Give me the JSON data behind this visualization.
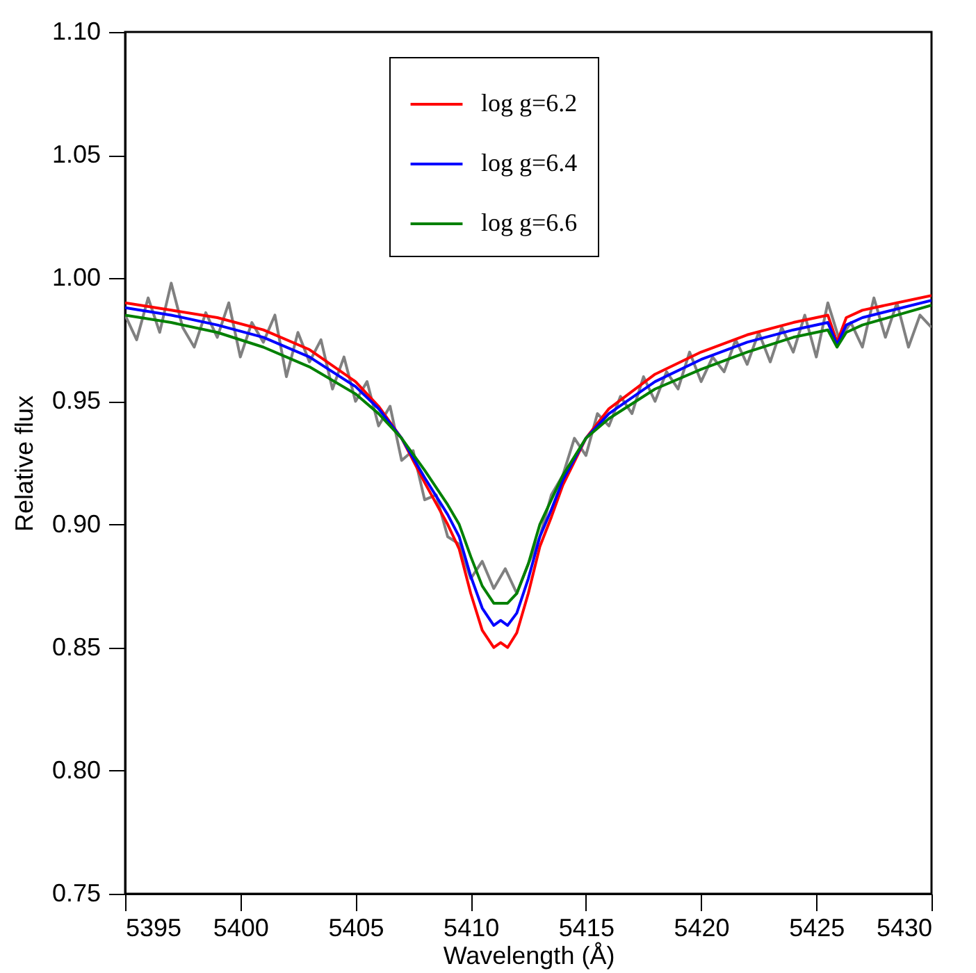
{
  "chart_data": {
    "type": "line",
    "xlabel": "Wavelength (Å)",
    "ylabel": "Relative flux",
    "xlim": [
      5395,
      5430
    ],
    "xticks": [
      5395,
      5400,
      5405,
      5410,
      5415,
      5420,
      5425,
      5430
    ],
    "ylim": [
      0.75,
      1.1
    ],
    "yticks": [
      {
        "value": 0.75,
        "label": "0.75"
      },
      {
        "value": 0.8,
        "label": "0.80"
      },
      {
        "value": 0.85,
        "label": "0.85"
      },
      {
        "value": 0.9,
        "label": "0.90"
      },
      {
        "value": 0.95,
        "label": "0.95"
      },
      {
        "value": 1.0,
        "label": "1.00"
      },
      {
        "value": 1.05,
        "label": "1.05"
      },
      {
        "value": 1.1,
        "label": "1.10"
      }
    ],
    "grid": false,
    "legend": "top",
    "line_style": "solid",
    "marker": "none",
    "series": [
      {
        "color": "#808080",
        "x": [
          5395,
          5395.5,
          5396,
          5396.5,
          5397,
          5397.5,
          5398,
          5398.5,
          5399,
          5399.5,
          5400,
          5400.5,
          5401,
          5401.5,
          5402,
          5402.5,
          5403,
          5403.5,
          5404,
          5404.5,
          5405,
          5405.5,
          5406,
          5406.5,
          5407,
          5407.5,
          5408,
          5408.5,
          5409,
          5409.5,
          5410,
          5410.5,
          5411,
          5411.5,
          5412,
          5412.5,
          5413,
          5413.5,
          5414,
          5414.5,
          5415,
          5415.5,
          5416,
          5416.5,
          5417,
          5417.5,
          5418,
          5418.5,
          5419,
          5419.5,
          5420,
          5420.5,
          5421,
          5421.5,
          5422,
          5422.5,
          5423,
          5423.5,
          5424,
          5424.5,
          5425,
          5425.5,
          5426,
          5426.5,
          5427,
          5427.5,
          5428,
          5428.5,
          5429,
          5429.5,
          5430
        ],
        "values": [
          0.985,
          0.975,
          0.992,
          0.978,
          0.998,
          0.98,
          0.972,
          0.986,
          0.976,
          0.99,
          0.968,
          0.982,
          0.974,
          0.985,
          0.96,
          0.978,
          0.966,
          0.975,
          0.955,
          0.968,
          0.95,
          0.958,
          0.94,
          0.948,
          0.926,
          0.93,
          0.91,
          0.912,
          0.895,
          0.892,
          0.878,
          0.885,
          0.874,
          0.882,
          0.872,
          0.884,
          0.895,
          0.912,
          0.92,
          0.935,
          0.928,
          0.945,
          0.94,
          0.952,
          0.945,
          0.96,
          0.95,
          0.962,
          0.955,
          0.97,
          0.958,
          0.968,
          0.962,
          0.975,
          0.965,
          0.978,
          0.966,
          0.98,
          0.97,
          0.985,
          0.968,
          0.99,
          0.975,
          0.982,
          0.972,
          0.992,
          0.976,
          0.99,
          0.972,
          0.985,
          0.98
        ]
      },
      {
        "name": "log g=6.2",
        "color": "#ff0000",
        "x": [
          5395,
          5397,
          5399,
          5401,
          5403,
          5405,
          5406,
          5407,
          5408,
          5409,
          5409.5,
          5410,
          5410.5,
          5411,
          5411.3,
          5411.6,
          5412,
          5412.5,
          5413,
          5413.5,
          5414,
          5415,
          5416,
          5418,
          5420,
          5422,
          5424,
          5425.5,
          5425.9,
          5426.3,
          5427,
          5430
        ],
        "values": [
          0.99,
          0.987,
          0.984,
          0.979,
          0.971,
          0.958,
          0.948,
          0.935,
          0.917,
          0.9,
          0.89,
          0.872,
          0.857,
          0.85,
          0.852,
          0.85,
          0.856,
          0.872,
          0.891,
          0.903,
          0.916,
          0.935,
          0.947,
          0.961,
          0.97,
          0.977,
          0.982,
          0.985,
          0.974,
          0.984,
          0.987,
          0.993
        ]
      },
      {
        "name": "log g=6.4",
        "color": "#0000ff",
        "x": [
          5395,
          5397,
          5399,
          5401,
          5403,
          5405,
          5406,
          5407,
          5408,
          5409,
          5409.5,
          5410,
          5410.5,
          5411,
          5411.3,
          5411.6,
          5412,
          5412.5,
          5413,
          5413.5,
          5414,
          5415,
          5416,
          5418,
          5420,
          5422,
          5424,
          5425.5,
          5425.9,
          5426.3,
          5427,
          5430
        ],
        "values": [
          0.988,
          0.985,
          0.981,
          0.976,
          0.968,
          0.956,
          0.947,
          0.935,
          0.919,
          0.904,
          0.895,
          0.879,
          0.866,
          0.859,
          0.861,
          0.859,
          0.864,
          0.878,
          0.895,
          0.906,
          0.918,
          0.935,
          0.945,
          0.958,
          0.967,
          0.974,
          0.979,
          0.982,
          0.973,
          0.981,
          0.984,
          0.991
        ]
      },
      {
        "name": "log g=6.6",
        "color": "#008000",
        "x": [
          5395,
          5397,
          5399,
          5401,
          5403,
          5405,
          5406,
          5407,
          5408,
          5409,
          5409.5,
          5410,
          5410.5,
          5411,
          5411.3,
          5411.6,
          5412,
          5412.5,
          5413,
          5413.5,
          5414,
          5415,
          5416,
          5418,
          5420,
          5422,
          5424,
          5425.5,
          5425.9,
          5426.3,
          5427,
          5430
        ],
        "values": [
          0.985,
          0.982,
          0.978,
          0.972,
          0.964,
          0.953,
          0.945,
          0.935,
          0.922,
          0.908,
          0.9,
          0.887,
          0.875,
          0.868,
          0.868,
          0.868,
          0.872,
          0.884,
          0.9,
          0.91,
          0.92,
          0.935,
          0.943,
          0.955,
          0.963,
          0.97,
          0.976,
          0.979,
          0.972,
          0.978,
          0.981,
          0.989
        ]
      }
    ]
  }
}
